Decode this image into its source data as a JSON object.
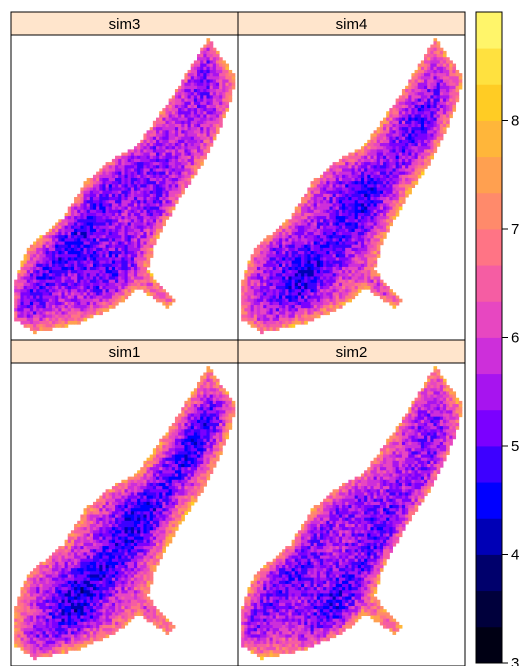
{
  "chart_data": {
    "type": "heatmap",
    "layout": "2x2 lattice (levelplot)",
    "panels": [
      {
        "name": "sim3",
        "row": 0,
        "col": 0,
        "seed": 3
      },
      {
        "name": "sim4",
        "row": 0,
        "col": 1,
        "seed": 4
      },
      {
        "name": "sim1",
        "row": 1,
        "col": 0,
        "seed": 1
      },
      {
        "name": "sim2",
        "row": 1,
        "col": 1,
        "seed": 2
      }
    ],
    "colorkey": {
      "range": [
        3,
        9
      ],
      "ticks": [
        3,
        4,
        5,
        6,
        7,
        8
      ],
      "tick_labels": [
        "3",
        "4",
        "5",
        "6",
        "7",
        "8"
      ],
      "n_levels": 18,
      "palette_stops": [
        "#000000",
        "#00005a",
        "#0000ff",
        "#8a00ff",
        "#e03cd0",
        "#ff6e8c",
        "#ffa050",
        "#ffd21e",
        "#ffff80"
      ]
    },
    "strip_color": "#ffe5cc",
    "value_pattern": "higher values (~6-8) near region boundary, lower values (~4.5-5.5) in interior",
    "legend_placement": "right",
    "grid": false
  }
}
